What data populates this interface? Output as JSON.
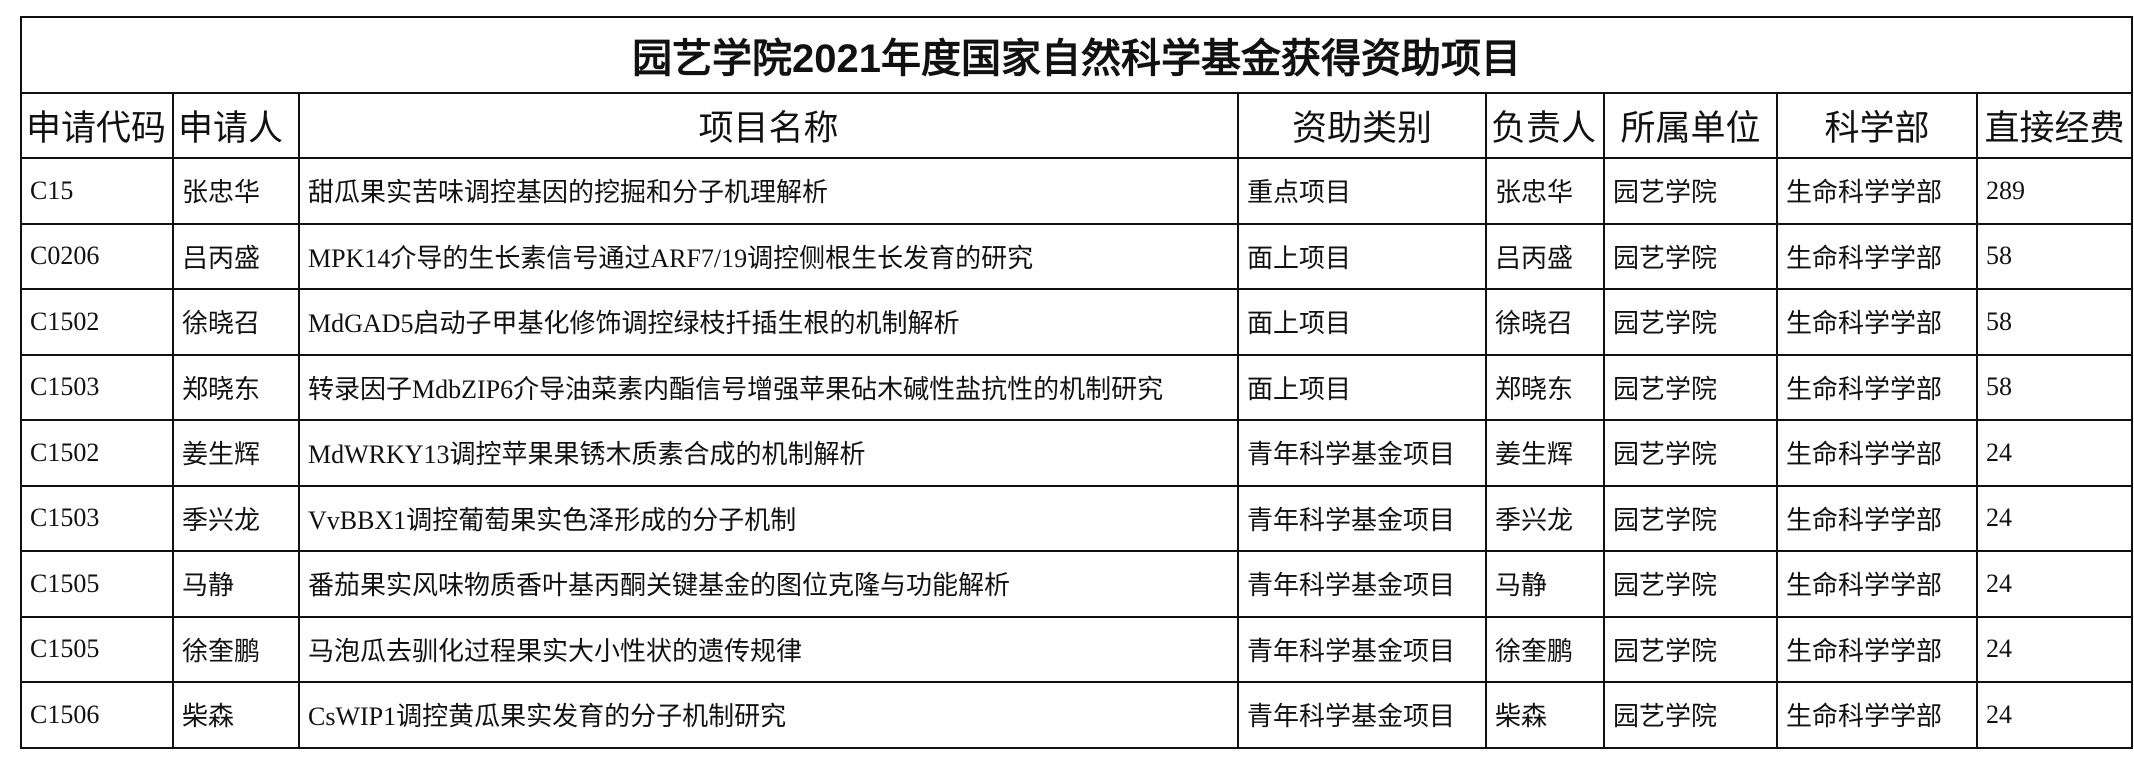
{
  "title": "园艺学院2021年度国家自然科学基金获得资助项目",
  "columns": [
    "申请代码",
    "申请人",
    "项目名称",
    "资助类别",
    "负责人",
    "所属单位",
    "科学部",
    "直接经费"
  ],
  "rows": [
    [
      "C15",
      "张忠华",
      "甜瓜果实苦味调控基因的挖掘和分子机理解析",
      "重点项目",
      "张忠华",
      "园艺学院",
      "生命科学学部",
      "289"
    ],
    [
      "C0206",
      "吕丙盛",
      "MPK14介导的生长素信号通过ARF7/19调控侧根生长发育的研究",
      "面上项目",
      "吕丙盛",
      "园艺学院",
      "生命科学学部",
      "58"
    ],
    [
      "C1502",
      "徐晓召",
      "MdGAD5启动子甲基化修饰调控绿枝扦插生根的机制解析",
      "面上项目",
      "徐晓召",
      "园艺学院",
      "生命科学学部",
      "58"
    ],
    [
      "C1503",
      "郑晓东",
      "转录因子MdbZIP6介导油菜素内酯信号增强苹果砧木碱性盐抗性的机制研究",
      "面上项目",
      "郑晓东",
      "园艺学院",
      "生命科学学部",
      "58"
    ],
    [
      "C1502",
      "姜生辉",
      "MdWRKY13调控苹果果锈木质素合成的机制解析",
      "青年科学基金项目",
      "姜生辉",
      "园艺学院",
      "生命科学学部",
      "24"
    ],
    [
      "C1503",
      "季兴龙",
      "VvBBX1调控葡萄果实色泽形成的分子机制",
      "青年科学基金项目",
      "季兴龙",
      "园艺学院",
      "生命科学学部",
      "24"
    ],
    [
      "C1505",
      "马静",
      "番茄果实风味物质香叶基丙酮关键基金的图位克隆与功能解析",
      "青年科学基金项目",
      "马静",
      "园艺学院",
      "生命科学学部",
      "24"
    ],
    [
      "C1505",
      "徐奎鹏",
      "马泡瓜去驯化过程果实大小性状的遗传规律",
      "青年科学基金项目",
      "徐奎鹏",
      "园艺学院",
      "生命科学学部",
      "24"
    ],
    [
      "C1506",
      "柴森",
      "CsWIP1调控黄瓜果实发育的分子机制研究",
      "青年科学基金项目",
      "柴森",
      "园艺学院",
      "生命科学学部",
      "24"
    ]
  ]
}
